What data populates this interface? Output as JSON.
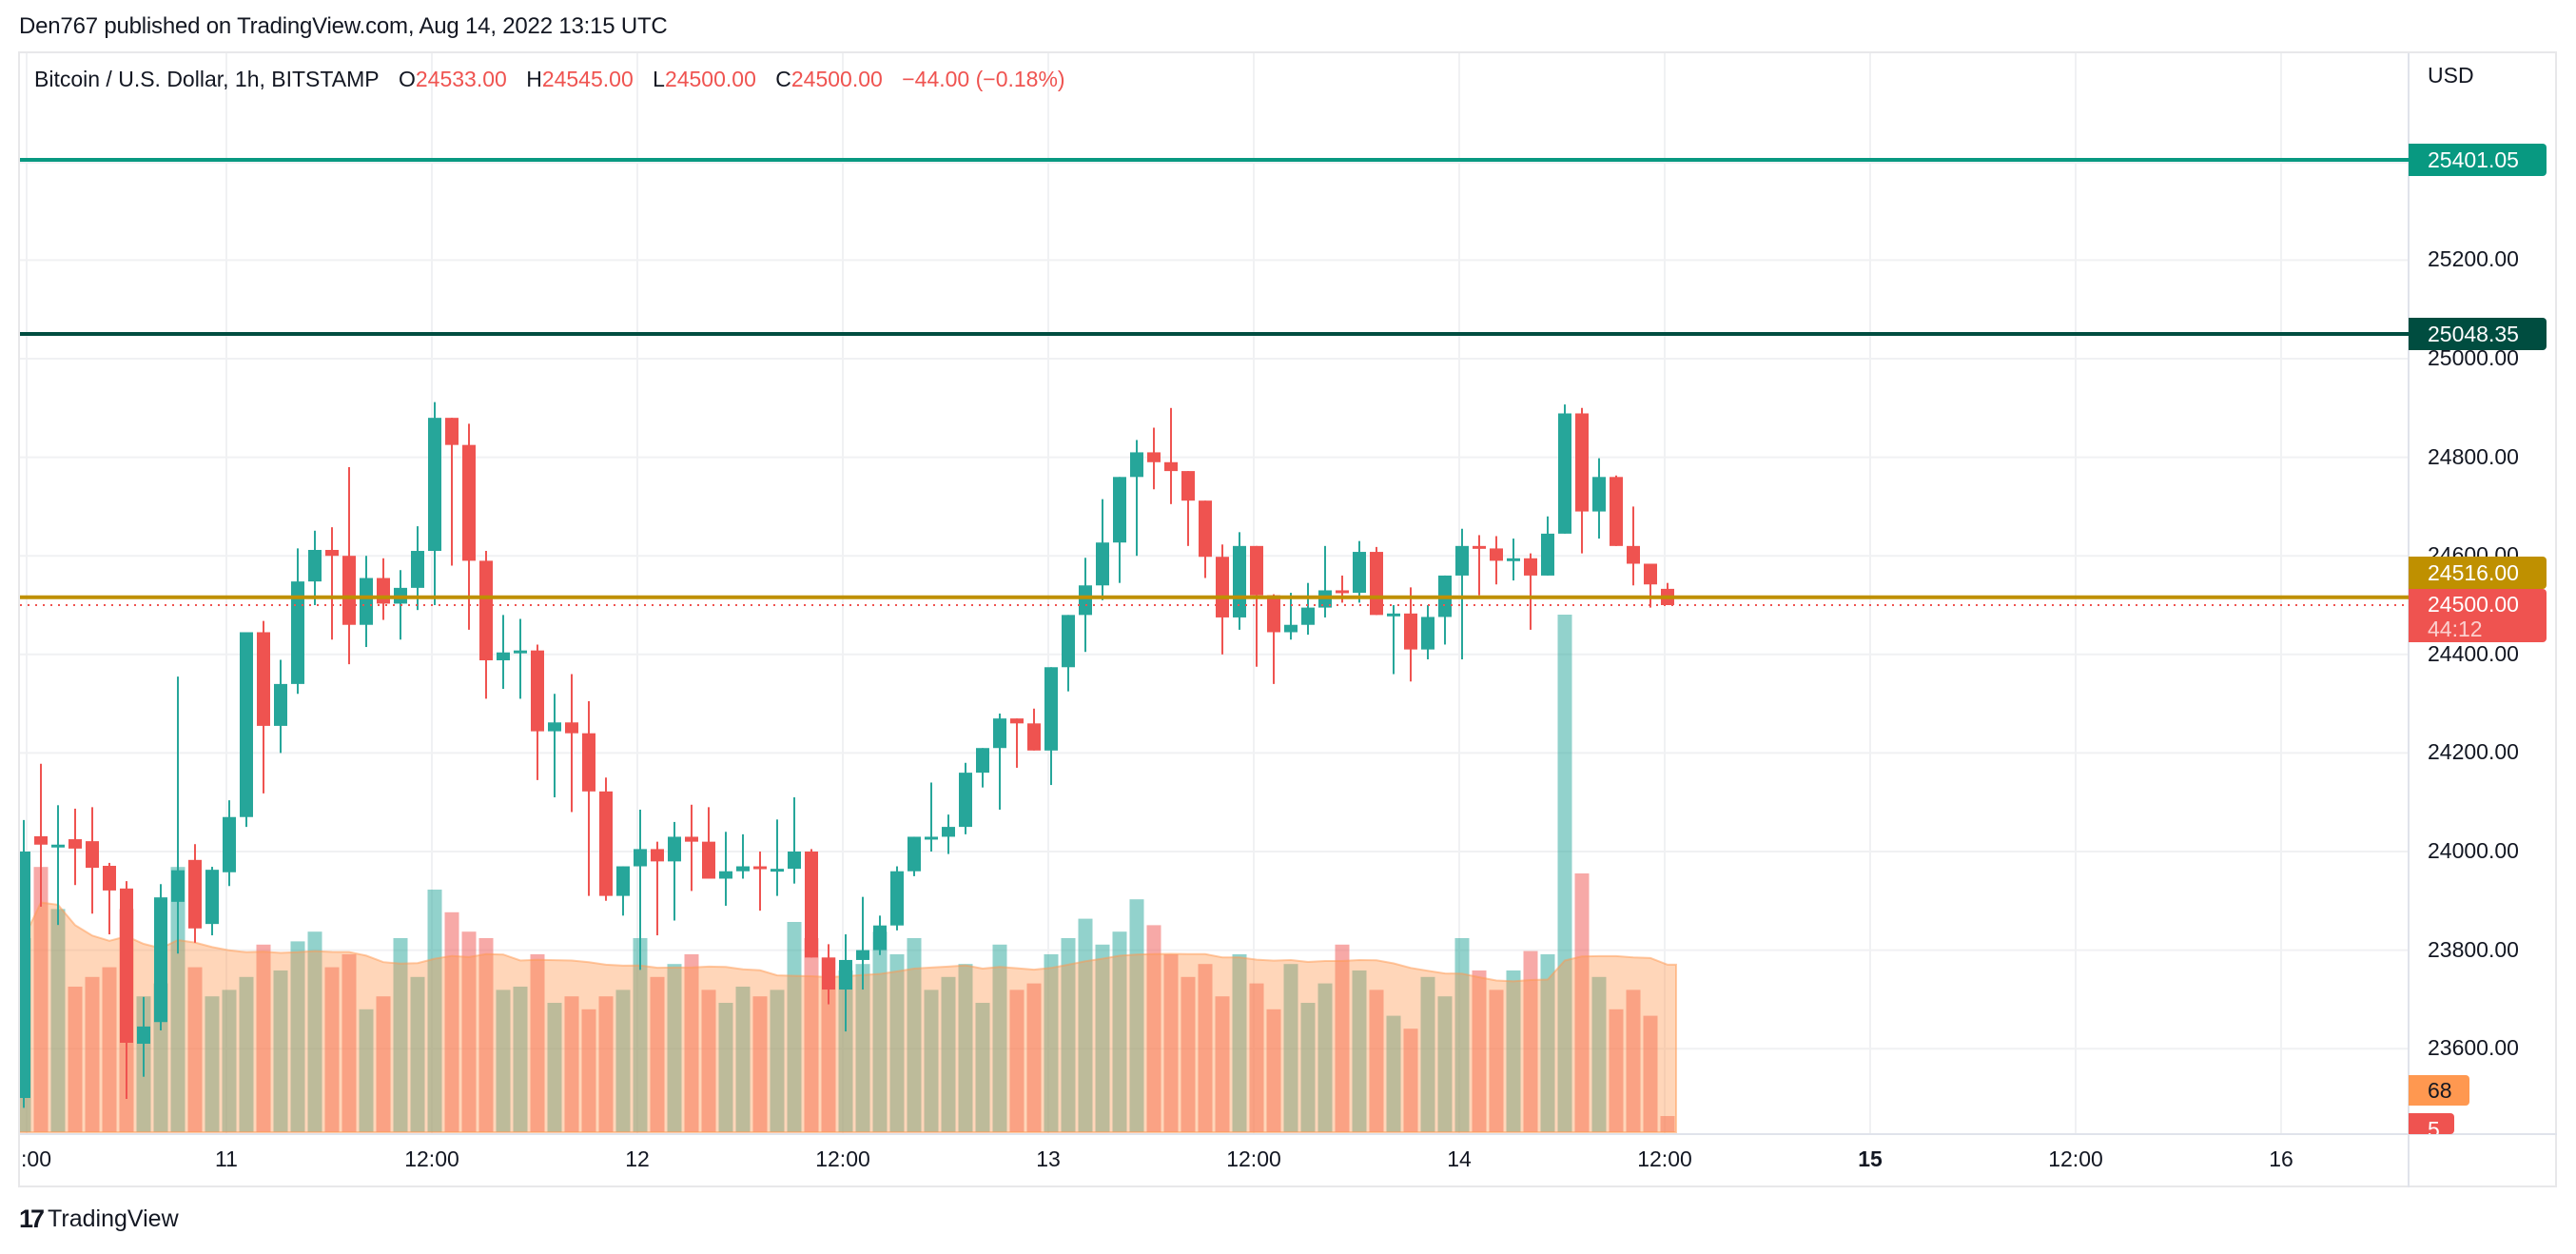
{
  "header": {
    "published_text": "Den767 published on TradingView.com, Aug 14, 2022 13:15 UTC"
  },
  "legend": {
    "symbol_title": "Bitcoin / U.S. Dollar, 1h, BITSTAMP",
    "open_label": "O",
    "open": "24533.00",
    "high_label": "H",
    "high": "24545.00",
    "low_label": "L",
    "low": "24500.00",
    "close_label": "C",
    "close": "24500.00",
    "change": "−44.00 (−0.18%)"
  },
  "price_axis": {
    "currency": "USD",
    "ticks": [
      "25200.00",
      "25000.00",
      "24800.00",
      "24600.00",
      "24400.00",
      "24200.00",
      "24000.00",
      "23800.00",
      "23600.00"
    ],
    "tags": {
      "resistance_1": {
        "value": "25401.05",
        "color": "#089981"
      },
      "resistance_2": {
        "value": "25048.35",
        "color": "#004d40"
      },
      "support": {
        "value": "24516.00",
        "color": "#bf9000"
      },
      "last_price": {
        "value": "24500.00",
        "countdown": "44:12",
        "color": "#ef5350"
      },
      "volume_ma": {
        "value": "68",
        "color": "#ff9850"
      },
      "volume": {
        "value": "5",
        "color": "#ef5350"
      }
    }
  },
  "time_axis": {
    "ticks": [
      {
        "label": ":00",
        "x": 28,
        "bold": false
      },
      {
        "label": "11",
        "x": 238,
        "bold": false
      },
      {
        "label": "12:00",
        "x": 454,
        "bold": false
      },
      {
        "label": "12",
        "x": 670,
        "bold": false
      },
      {
        "label": "12:00",
        "x": 886,
        "bold": false
      },
      {
        "label": "13",
        "x": 1102,
        "bold": false
      },
      {
        "label": "12:00",
        "x": 1318,
        "bold": false
      },
      {
        "label": "14",
        "x": 1534,
        "bold": false
      },
      {
        "label": "12:00",
        "x": 1750,
        "bold": false
      },
      {
        "label": "15",
        "x": 1966,
        "bold": true
      },
      {
        "label": "12:00",
        "x": 2182,
        "bold": false
      },
      {
        "label": "16",
        "x": 2398,
        "bold": false
      }
    ]
  },
  "footer": {
    "brand": "TradingView",
    "logo": "17"
  },
  "colors": {
    "up": "#26a69a",
    "down": "#ef5350",
    "up_volume": "#26a69a",
    "down_volume": "#ef5350",
    "volume_ma_fill": "#ffccaa"
  },
  "chart_data": {
    "type": "candlestick",
    "title": "Bitcoin / U.S. Dollar, 1h, BITSTAMP",
    "xlabel": "",
    "ylabel": "USD",
    "ylim": [
      23480,
      25500
    ],
    "grid": true,
    "interval": "1h",
    "horizontal_lines": [
      {
        "price": 25401.05,
        "color": "#089981"
      },
      {
        "price": 25048.35,
        "color": "#004d40"
      },
      {
        "price": 24516.0,
        "color": "#bf9000"
      },
      {
        "price": 24500.0,
        "color": "#ef5350",
        "style": "dotted"
      }
    ],
    "candles": [
      [
        23500,
        24064,
        23480,
        24000,
        60
      ],
      [
        24031,
        24178,
        23888,
        24014,
        82
      ],
      [
        24010,
        24094,
        23851,
        24014,
        69
      ],
      [
        24025,
        24087,
        23932,
        24006,
        45
      ],
      [
        24021,
        24090,
        23874,
        23967,
        48
      ],
      [
        23971,
        23977,
        23832,
        23921,
        51
      ],
      [
        23925,
        23940,
        23498,
        23612,
        69
      ],
      [
        23610,
        23705,
        23543,
        23645,
        42
      ],
      [
        23654,
        23934,
        23637,
        23907,
        46
      ],
      [
        23898,
        24355,
        23793,
        23962,
        82
      ],
      [
        23983,
        24015,
        23815,
        23844,
        51
      ],
      [
        23853,
        23969,
        23830,
        23963,
        42
      ],
      [
        23958,
        24104,
        23930,
        24070,
        44
      ],
      [
        24070,
        24251,
        24050,
        24445,
        48
      ],
      [
        24445,
        24468,
        24118,
        24255,
        58
      ],
      [
        24255,
        24389,
        24200,
        24340,
        50
      ],
      [
        24340,
        24615,
        24320,
        24548,
        59
      ],
      [
        24548,
        24651,
        24500,
        24612,
        62
      ],
      [
        24612,
        24658,
        24430,
        24600,
        51
      ],
      [
        24600,
        24780,
        24380,
        24460,
        55
      ],
      [
        24460,
        24600,
        24415,
        24555,
        38
      ],
      [
        24555,
        24595,
        24470,
        24503,
        42
      ],
      [
        24503,
        24571,
        24430,
        24535,
        60
      ],
      [
        24535,
        24660,
        24490,
        24610,
        48
      ],
      [
        24610,
        24912,
        24500,
        24880,
        75
      ],
      [
        24880,
        24860,
        24580,
        24825,
        68
      ],
      [
        24825,
        24868,
        24450,
        24590,
        62
      ],
      [
        24590,
        24610,
        24310,
        24388,
        60
      ],
      [
        24388,
        24480,
        24330,
        24404,
        44
      ],
      [
        24404,
        24472,
        24310,
        24408,
        45
      ],
      [
        24408,
        24420,
        24145,
        24244,
        55
      ],
      [
        24244,
        24320,
        24110,
        24262,
        40
      ],
      [
        24262,
        24360,
        24080,
        24240,
        42
      ],
      [
        24240,
        24305,
        23910,
        24122,
        38
      ],
      [
        24122,
        24150,
        23900,
        23910,
        42
      ],
      [
        23910,
        23970,
        23870,
        23970,
        44
      ],
      [
        23970,
        24085,
        23760,
        24005,
        60
      ],
      [
        24005,
        24020,
        23830,
        23980,
        48
      ],
      [
        23980,
        24060,
        23860,
        24030,
        52
      ],
      [
        24030,
        24095,
        23920,
        24020,
        55
      ],
      [
        24020,
        24090,
        23950,
        23945,
        44
      ],
      [
        23945,
        24040,
        23890,
        23960,
        40
      ],
      [
        23960,
        24035,
        23945,
        23970,
        45
      ],
      [
        23970,
        24000,
        23880,
        23965,
        42
      ],
      [
        23965,
        24065,
        23910,
        23965,
        44
      ],
      [
        23965,
        24110,
        23935,
        24000,
        65
      ],
      [
        24000,
        24005,
        23875,
        23785,
        60
      ],
      [
        23785,
        23812,
        23690,
        23720,
        54
      ],
      [
        23720,
        23832,
        23635,
        23780,
        50
      ],
      [
        23780,
        23908,
        23720,
        23800,
        52
      ],
      [
        23800,
        23870,
        23790,
        23850,
        62
      ],
      [
        23850,
        23970,
        23840,
        23960,
        55
      ],
      [
        23960,
        24020,
        23950,
        24030,
        60
      ],
      [
        24030,
        24140,
        24000,
        24030,
        44
      ],
      [
        24030,
        24075,
        23995,
        24050,
        48
      ],
      [
        24050,
        24180,
        24035,
        24160,
        52
      ],
      [
        24160,
        24200,
        24130,
        24210,
        40
      ],
      [
        24210,
        24280,
        24085,
        24270,
        58
      ],
      [
        24270,
        24245,
        24170,
        24260,
        44
      ],
      [
        24260,
        24290,
        24220,
        24205,
        46
      ],
      [
        24205,
        24345,
        24135,
        24374,
        55
      ],
      [
        24374,
        24480,
        24325,
        24480,
        60
      ],
      [
        24480,
        24596,
        24405,
        24540,
        66
      ],
      [
        24540,
        24715,
        24510,
        24627,
        58
      ],
      [
        24627,
        24705,
        24545,
        24760,
        62
      ],
      [
        24760,
        24835,
        24600,
        24810,
        72
      ],
      [
        24810,
        24860,
        24735,
        24790,
        64
      ],
      [
        24790,
        24900,
        24705,
        24772,
        55
      ],
      [
        24772,
        24742,
        24620,
        24712,
        48
      ],
      [
        24712,
        24696,
        24555,
        24598,
        52
      ],
      [
        24598,
        24623,
        24400,
        24475,
        42
      ],
      [
        24475,
        24648,
        24450,
        24620,
        55
      ],
      [
        24620,
        24613,
        24375,
        24520,
        46
      ],
      [
        24520,
        24522,
        24340,
        24445,
        38
      ],
      [
        24445,
        24525,
        24430,
        24460,
        52
      ],
      [
        24460,
        24545,
        24440,
        24495,
        40
      ],
      [
        24495,
        24620,
        24475,
        24530,
        46
      ],
      [
        24530,
        24560,
        24505,
        24525,
        58
      ],
      [
        24525,
        24630,
        24505,
        24608,
        50
      ],
      [
        24608,
        24618,
        24490,
        24480,
        44
      ],
      [
        24480,
        24500,
        24360,
        24483,
        36
      ],
      [
        24483,
        24536,
        24345,
        24410,
        32
      ],
      [
        24410,
        24500,
        24390,
        24476,
        48
      ],
      [
        24476,
        24510,
        24420,
        24560,
        42
      ],
      [
        24560,
        24655,
        24390,
        24620,
        60
      ],
      [
        24620,
        24642,
        24520,
        24615,
        50
      ],
      [
        24615,
        24640,
        24542,
        24590,
        44
      ],
      [
        24590,
        24635,
        24550,
        24595,
        50
      ],
      [
        24595,
        24605,
        24450,
        24560,
        56
      ],
      [
        24560,
        24680,
        24570,
        24645,
        55
      ],
      [
        24645,
        24907,
        24652,
        24889,
        160
      ],
      [
        24889,
        24900,
        24605,
        24690,
        80
      ],
      [
        24690,
        24798,
        24635,
        24760,
        48
      ],
      [
        24760,
        24763,
        24620,
        24620,
        38
      ],
      [
        24620,
        24700,
        24540,
        24584,
        44
      ],
      [
        24584,
        24580,
        24495,
        24542,
        36
      ],
      [
        24533,
        24545,
        24500,
        24500,
        5
      ]
    ],
    "volume_ma_value": 68
  }
}
